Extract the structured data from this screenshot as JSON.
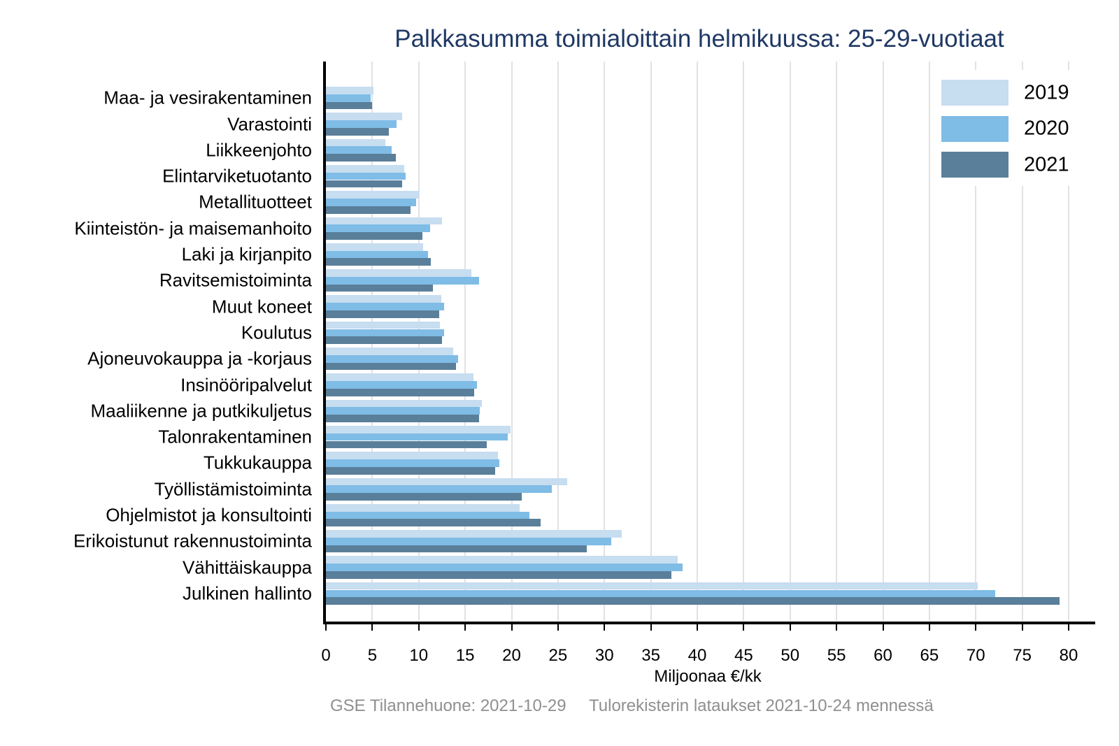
{
  "title": "Palkkasumma toimialoittain helmikuussa: 25-29-vuotiaat",
  "chart_data": {
    "type": "bar",
    "orientation": "horizontal",
    "title": "Palkkasumma toimialoittain helmikuussa: 25-29-vuotiaat",
    "xlabel": "Miljoonaa €/kk",
    "ylabel": "",
    "xlim": [
      0,
      80
    ],
    "xticks": [
      0,
      5,
      10,
      15,
      20,
      25,
      30,
      35,
      40,
      45,
      50,
      55,
      60,
      65,
      70,
      75,
      80
    ],
    "grid": true,
    "legend_position": "top-right",
    "categories": [
      "Maa- ja vesirakentaminen",
      "Varastointi",
      "Liikkeenjohto",
      "Elintarviketuotanto",
      "Metallituotteet",
      "Kiinteistön- ja maisemanhoito",
      "Laki ja kirjanpito",
      "Ravitsemistoiminta",
      "Muut koneet",
      "Koulutus",
      "Ajoneuvokauppa ja -korjaus",
      "Insinööripalvelut",
      "Maaliikenne ja putkikuljetus",
      "Talonrakentaminen",
      "Tukkukauppa",
      "Työllistämistoiminta",
      "Ohjelmistot ja konsultointi",
      "Erikoistunut rakennustoiminta",
      "Vähittäiskauppa",
      "Julkinen hallinto"
    ],
    "series": [
      {
        "name": "2019",
        "color": "#C7DDF0",
        "values": [
          5.1,
          8.2,
          6.4,
          8.4,
          10.0,
          12.5,
          10.5,
          15.7,
          12.4,
          12.3,
          13.7,
          15.9,
          16.8,
          19.9,
          18.5,
          26.0,
          20.9,
          31.9,
          37.9,
          70.2
        ]
      },
      {
        "name": "2020",
        "color": "#7FBCE6",
        "values": [
          4.8,
          7.6,
          7.1,
          8.6,
          9.7,
          11.2,
          11.0,
          16.5,
          12.7,
          12.7,
          14.2,
          16.3,
          16.6,
          19.6,
          18.7,
          24.3,
          21.9,
          30.7,
          38.4,
          72.1
        ]
      },
      {
        "name": "2021",
        "color": "#5A7F9A",
        "values": [
          5.0,
          6.8,
          7.5,
          8.2,
          9.1,
          10.4,
          11.3,
          11.5,
          12.2,
          12.5,
          14.0,
          16.0,
          16.5,
          17.3,
          18.2,
          21.1,
          23.1,
          28.1,
          37.2,
          79.0
        ]
      }
    ]
  },
  "footer": {
    "left": "GSE Tilannehuone: 2021-10-29",
    "right": "Tulorekisterin lataukset 2021-10-24 mennessä"
  },
  "colors": {
    "title_text": "#1F3864",
    "gridline": "#E1E1E6",
    "axis": "#000000",
    "footer_text": "#8F8F8F"
  }
}
